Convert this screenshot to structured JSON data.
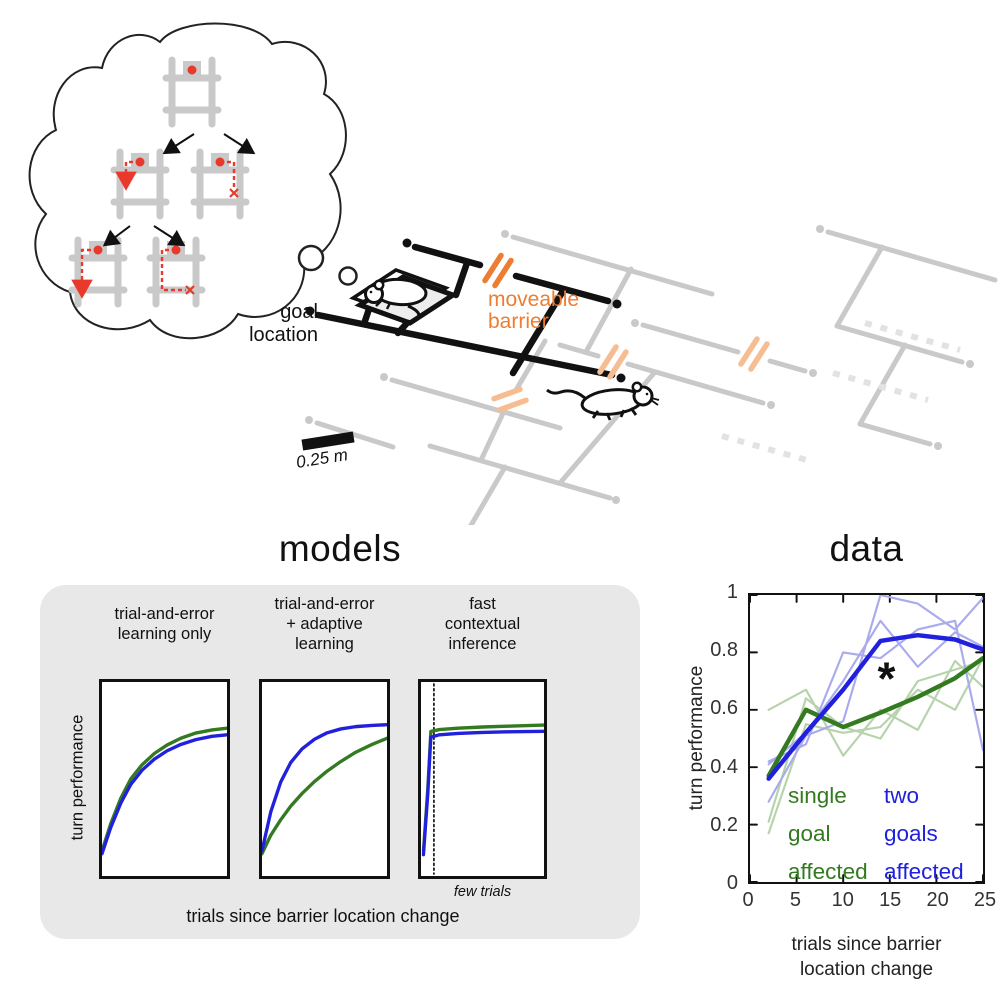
{
  "figure": {
    "apparatus": {
      "goal_location_lines": [
        "goal",
        "location"
      ],
      "moveable_barrier_lines": [
        "moveable",
        "barrier"
      ],
      "scale_bar_label": "0.25 m"
    },
    "models_section": {
      "title": "models",
      "ylabel": "turn performance",
      "xlabel": "trials since barrier location change",
      "few_trials_label": "few trials",
      "panel_titles": [
        [
          "trial-and-error",
          "learning only"
        ],
        [
          "trial-and-error",
          "+ adaptive",
          "learning"
        ],
        [
          "fast",
          "contextual",
          "inference"
        ]
      ]
    },
    "data_section": {
      "title": "data",
      "ylabel": "turn performance",
      "xlabel_lines": [
        "trials since barrier",
        "location change"
      ],
      "legend_single_lines": [
        "single",
        "goal",
        "affected"
      ],
      "legend_two_lines": [
        "two",
        "goals",
        "affected"
      ],
      "significance_marker": "*"
    }
  },
  "colors": {
    "green": "#337a21",
    "blue": "#2121dd",
    "light_green": "#b7d3ab",
    "light_blue": "#a9abec",
    "orange": "#ED7D31",
    "light_orange": "#f6bd92",
    "maze_gray": "#c9c9c9",
    "panel_gray": "#e8e8e8",
    "red": "#e8392b"
  },
  "chart_data": {
    "models": {
      "type": "line",
      "xlabel": "trials since barrier location change",
      "ylabel": "turn performance",
      "axes_numeric": false,
      "panels": [
        {
          "title": "trial-and-error learning only",
          "series": [
            {
              "name": "single goal affected",
              "color": "#337a21",
              "width": 3.5,
              "points": [
                [
                  0,
                  0.13
                ],
                [
                  0.07,
                  0.27
                ],
                [
                  0.15,
                  0.4
                ],
                [
                  0.23,
                  0.5
                ],
                [
                  0.32,
                  0.573
                ],
                [
                  0.42,
                  0.632
                ],
                [
                  0.52,
                  0.675
                ],
                [
                  0.63,
                  0.71
                ],
                [
                  0.75,
                  0.737
                ],
                [
                  0.88,
                  0.753
                ],
                [
                  1,
                  0.762
                ]
              ]
            },
            {
              "name": "two goals affected",
              "color": "#2121dd",
              "width": 3.5,
              "points": [
                [
                  0,
                  0.115
                ],
                [
                  0.07,
                  0.25
                ],
                [
                  0.15,
                  0.375
                ],
                [
                  0.23,
                  0.472
                ],
                [
                  0.32,
                  0.545
                ],
                [
                  0.42,
                  0.603
                ],
                [
                  0.52,
                  0.645
                ],
                [
                  0.63,
                  0.678
                ],
                [
                  0.75,
                  0.703
                ],
                [
                  0.88,
                  0.72
                ],
                [
                  1,
                  0.728
                ]
              ]
            }
          ]
        },
        {
          "title": "trial-and-error + adaptive learning",
          "series": [
            {
              "name": "single goal affected",
              "color": "#337a21",
              "width": 3.5,
              "points": [
                [
                  0,
                  0.115
                ],
                [
                  0.07,
                  0.21
                ],
                [
                  0.15,
                  0.29
                ],
                [
                  0.23,
                  0.36
                ],
                [
                  0.32,
                  0.425
                ],
                [
                  0.42,
                  0.487
                ],
                [
                  0.52,
                  0.54
                ],
                [
                  0.63,
                  0.59
                ],
                [
                  0.75,
                  0.638
                ],
                [
                  0.88,
                  0.678
                ],
                [
                  1,
                  0.71
                ]
              ]
            },
            {
              "name": "two goals affected",
              "color": "#2121dd",
              "width": 3.5,
              "points": [
                [
                  0,
                  0.13
                ],
                [
                  0.07,
                  0.33
                ],
                [
                  0.15,
                  0.485
                ],
                [
                  0.23,
                  0.585
                ],
                [
                  0.32,
                  0.655
                ],
                [
                  0.42,
                  0.705
                ],
                [
                  0.52,
                  0.738
                ],
                [
                  0.63,
                  0.758
                ],
                [
                  0.75,
                  0.77
                ],
                [
                  0.88,
                  0.776
                ],
                [
                  1,
                  0.78
                ]
              ]
            }
          ]
        },
        {
          "title": "fast contextual inference",
          "vline_x": 0.105,
          "vline_label": "few trials",
          "series": [
            {
              "name": "single goal affected",
              "color": "#337a21",
              "width": 3.5,
              "points": [
                [
                  0.02,
                  0.13
                ],
                [
                  0.055,
                  0.45
                ],
                [
                  0.08,
                  0.745
                ],
                [
                  0.15,
                  0.755
                ],
                [
                  0.3,
                  0.762
                ],
                [
                  0.5,
                  0.768
                ],
                [
                  0.7,
                  0.772
                ],
                [
                  1,
                  0.778
                ]
              ]
            },
            {
              "name": "two goals affected",
              "color": "#2121dd",
              "width": 3.5,
              "points": [
                [
                  0.02,
                  0.11
                ],
                [
                  0.055,
                  0.42
                ],
                [
                  0.08,
                  0.715
                ],
                [
                  0.15,
                  0.728
                ],
                [
                  0.3,
                  0.735
                ],
                [
                  0.5,
                  0.74
                ],
                [
                  0.7,
                  0.743
                ],
                [
                  1,
                  0.746
                ]
              ]
            }
          ]
        }
      ]
    },
    "data_panel": {
      "type": "line",
      "title": "data",
      "xlabel": "trials since barrier location change",
      "ylabel": "turn performance",
      "xlim": [
        0,
        25
      ],
      "ylim": [
        0,
        1
      ],
      "xticks": [
        0,
        5,
        10,
        15,
        20,
        25
      ],
      "yticks": [
        0,
        0.2,
        0.4,
        0.6,
        0.8,
        1
      ],
      "x": [
        2,
        6,
        10,
        14,
        18,
        22,
        25
      ],
      "series": [
        {
          "name": "single goal affected - animal",
          "color": "#b7d3ab",
          "width": 2.2,
          "values": [
            0.6,
            0.67,
            0.44,
            0.6,
            0.53,
            0.77,
            0.68
          ]
        },
        {
          "name": "single goal affected - animal",
          "color": "#b7d3ab",
          "width": 2.2,
          "values": [
            0.17,
            0.55,
            0.52,
            0.54,
            0.67,
            0.6,
            0.78
          ]
        },
        {
          "name": "single goal affected - animal",
          "color": "#b7d3ab",
          "width": 2.2,
          "values": [
            0.21,
            0.64,
            0.54,
            0.5,
            0.7,
            0.74,
            0.77
          ]
        },
        {
          "name": "two goals affected - animal",
          "color": "#a9abec",
          "width": 2.2,
          "values": [
            0.42,
            0.48,
            0.8,
            0.78,
            0.88,
            0.91,
            0.46
          ]
        },
        {
          "name": "two goals affected - animal",
          "color": "#a9abec",
          "width": 2.2,
          "values": [
            0.28,
            0.51,
            0.56,
            1.0,
            0.97,
            0.88,
            0.99
          ]
        },
        {
          "name": "two goals affected - animal",
          "color": "#a9abec",
          "width": 2.2,
          "values": [
            0.41,
            0.52,
            0.7,
            0.91,
            0.75,
            0.87,
            0.82
          ]
        },
        {
          "name": "single goal affected - mean",
          "color": "#337a21",
          "width": 4.5,
          "values": [
            0.37,
            0.6,
            0.54,
            0.59,
            0.645,
            0.71,
            0.78
          ]
        },
        {
          "name": "two goals affected - mean",
          "color": "#2121dd",
          "width": 4.5,
          "values": [
            0.36,
            0.52,
            0.67,
            0.84,
            0.86,
            0.845,
            0.81
          ]
        }
      ],
      "annotation": {
        "text": "*",
        "x": 14.6,
        "y": 0.725
      },
      "legend_position": "lower center inside"
    }
  }
}
